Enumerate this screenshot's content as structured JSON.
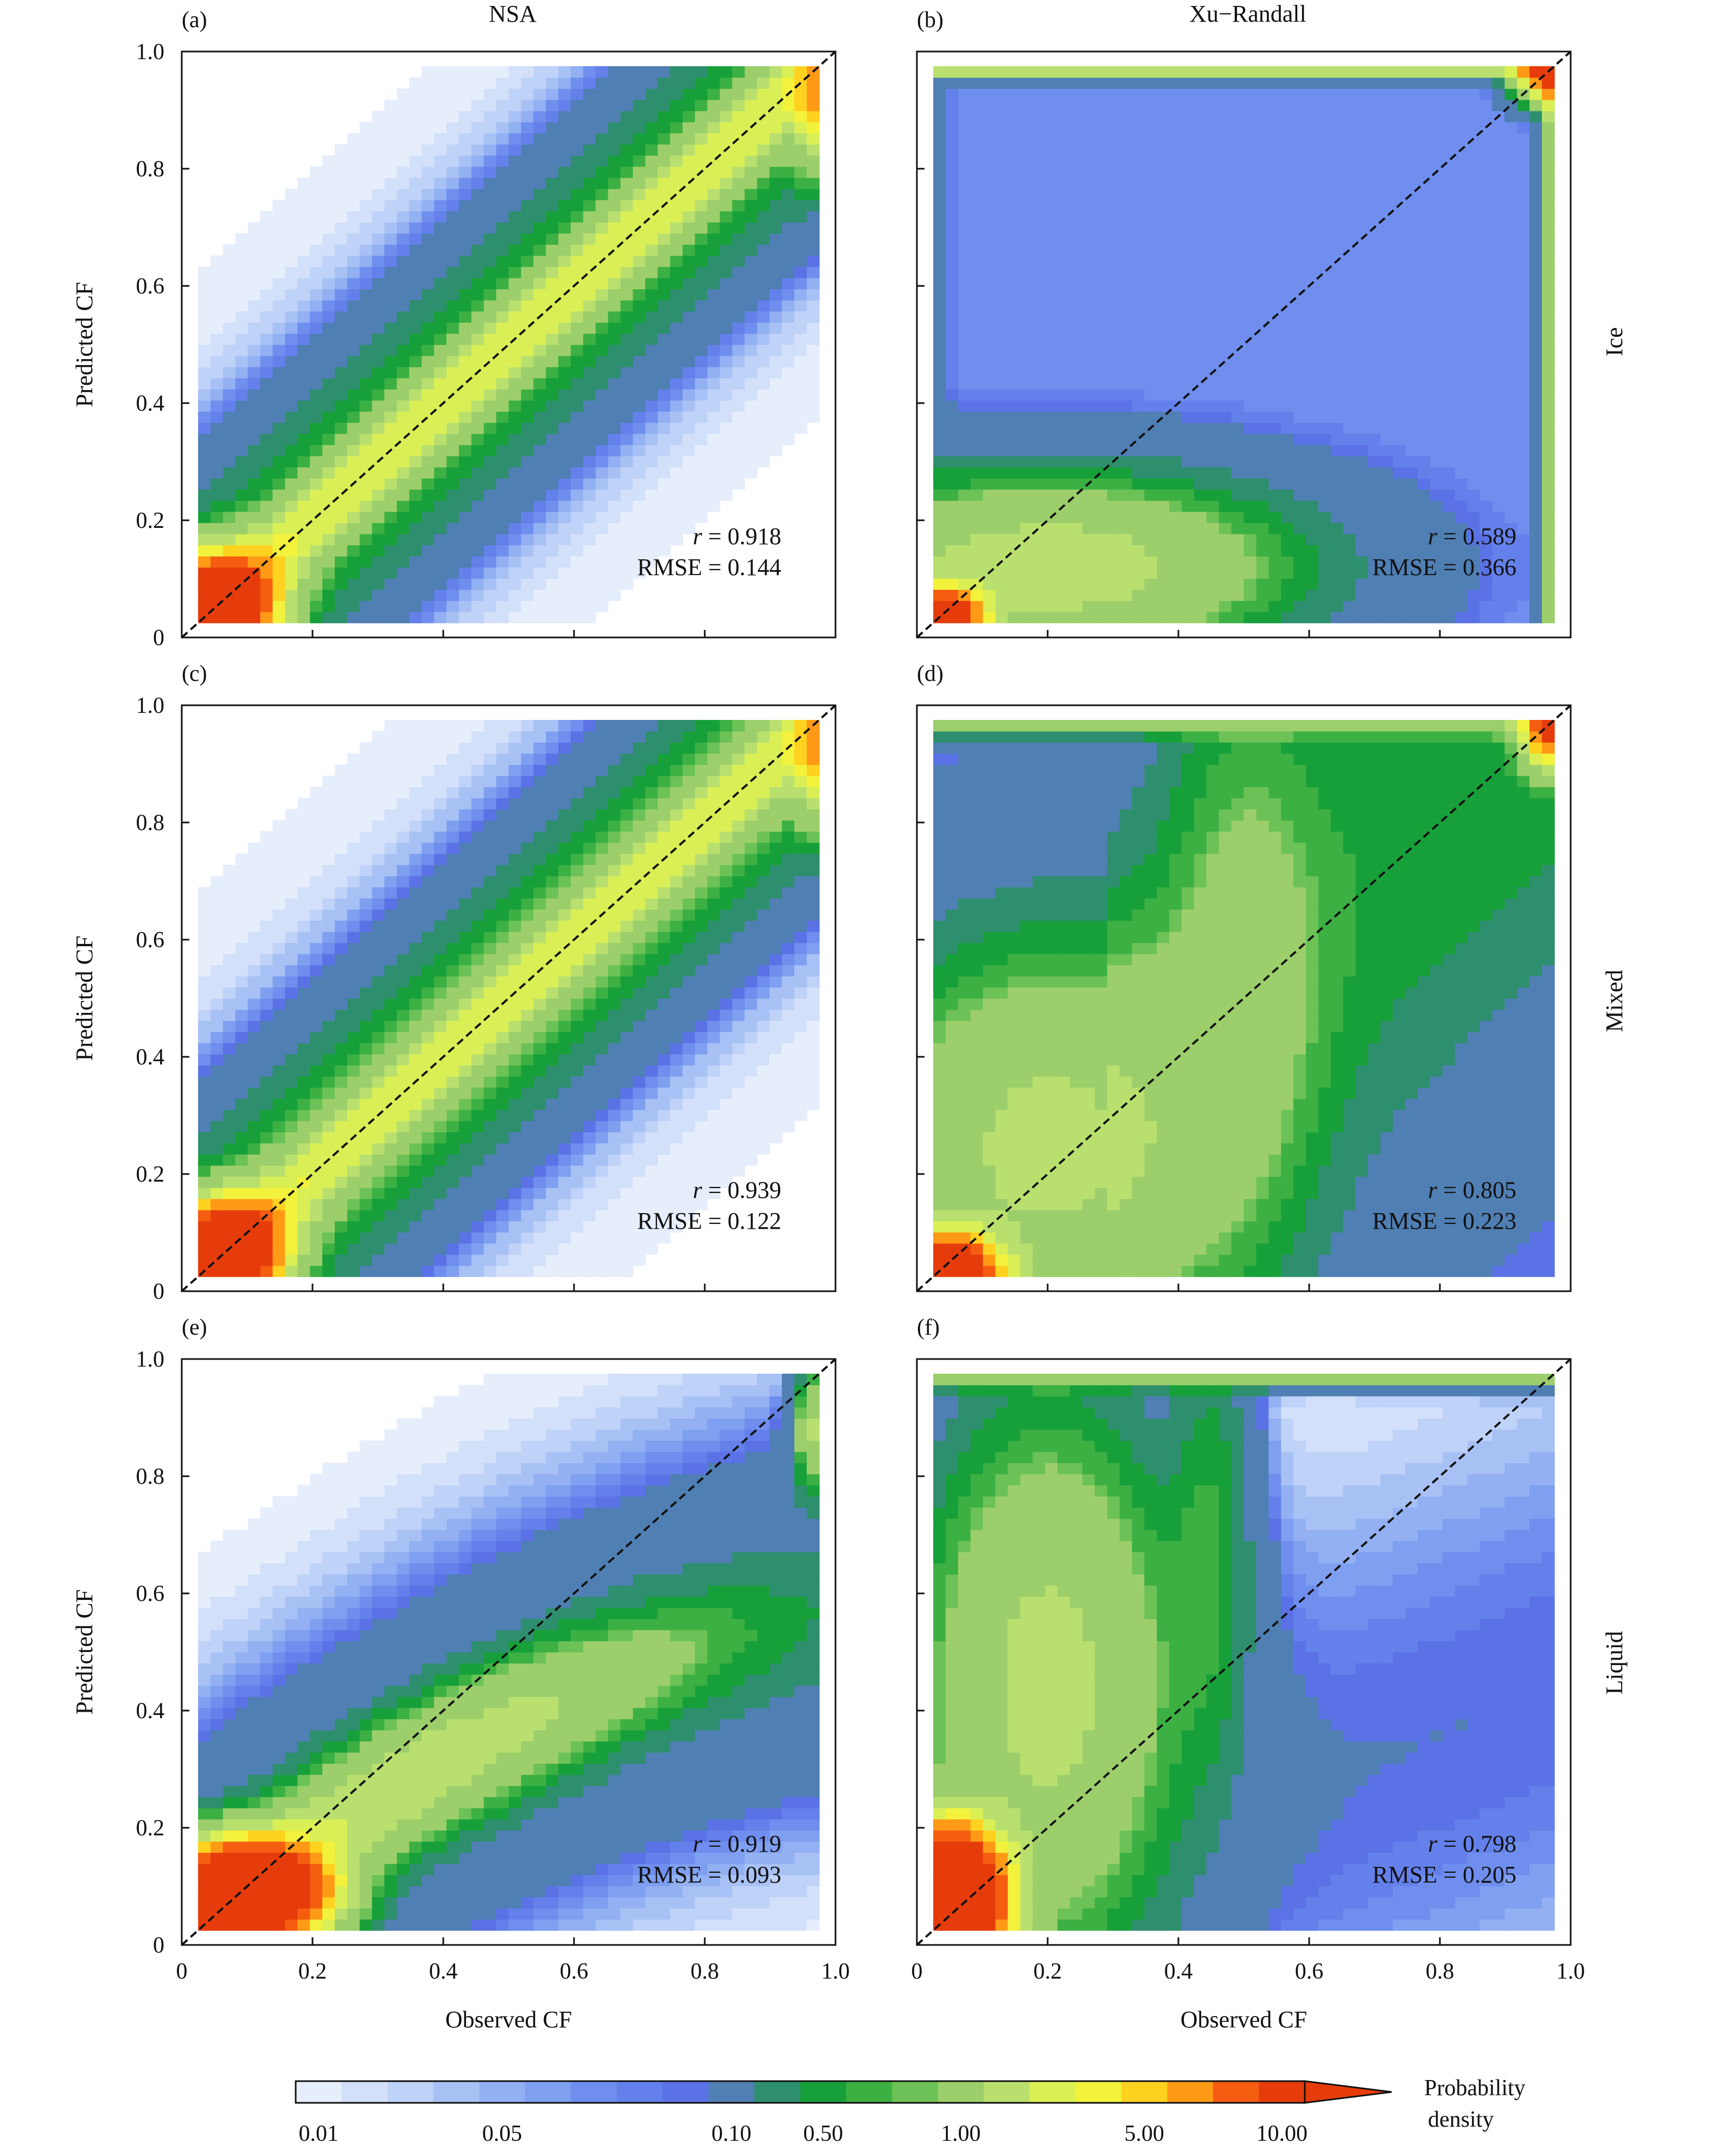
{
  "column_titles": [
    "NSA",
    "Xu−Randall"
  ],
  "row_labels": [
    "Ice",
    "Mixed",
    "Liquid"
  ],
  "colorbar": {
    "label_line1": "Probability",
    "label_line2": "density",
    "tick_labels": [
      "0.01",
      "0.05",
      "0.10",
      "0.50",
      "1.00",
      "5.00",
      "10.00"
    ],
    "levels": [
      0.01,
      0.02,
      0.03,
      0.04,
      0.05,
      0.06,
      0.07,
      0.08,
      0.09,
      0.1,
      0.3,
      0.5,
      0.7,
      0.9,
      1.0,
      2.0,
      3.0,
      4.0,
      5.0,
      6.0,
      8.0,
      10.0
    ],
    "colors": [
      "#e6eefc",
      "#d3e0fa",
      "#bfd2f8",
      "#a8c1f5",
      "#92b0f2",
      "#7f9ff0",
      "#6f8eee",
      "#6480ea",
      "#5b72e6",
      "#4f7fb3",
      "#2e8f6e",
      "#17a03a",
      "#3cb043",
      "#6cc257",
      "#9ccf6b",
      "#b9e06f",
      "#d9ef55",
      "#f2f23c",
      "#ffd21f",
      "#ff9a16",
      "#f55d10",
      "#e63c0c"
    ],
    "extend": "max"
  },
  "chart_data": [
    {
      "type": "heatmap",
      "panel": "(a)",
      "column": "NSA",
      "row": "Ice",
      "xlabel": "",
      "ylabel": "Predicted CF",
      "xlim": [
        0,
        1.0
      ],
      "ylim": [
        0,
        1.0
      ],
      "x_tick_labels": [],
      "y_tick_labels": [
        "0",
        "0.2",
        "0.4",
        "0.6",
        "0.8",
        "1.0"
      ],
      "stats_r": "= 0.918",
      "stats_rmse": "RMSE = 0.144",
      "ridge": "diagonal",
      "ridge_slope": 1.0,
      "ridge_width": 0.16,
      "peak_density": 10,
      "peak_at": [
        0.06,
        0.06
      ]
    },
    {
      "type": "heatmap",
      "panel": "(b)",
      "column": "Xu−Randall",
      "row": "Ice",
      "xlabel": "",
      "ylabel": "",
      "xlim": [
        0,
        1.0
      ],
      "ylim": [
        0,
        1.0
      ],
      "x_tick_labels": [],
      "y_tick_labels": [],
      "stats_r": "= 0.589",
      "stats_rmse": "RMSE = 0.366",
      "ridge": "low-blob",
      "peak_density": 10,
      "peak_at": [
        0.03,
        0.03
      ]
    },
    {
      "type": "heatmap",
      "panel": "(c)",
      "column": "NSA",
      "row": "Mixed",
      "xlabel": "",
      "ylabel": "Predicted CF",
      "xlim": [
        0,
        1.0
      ],
      "ylim": [
        0,
        1.0
      ],
      "x_tick_labels": [],
      "y_tick_labels": [
        "0",
        "0.2",
        "0.4",
        "0.6",
        "0.8",
        "1.0"
      ],
      "stats_r": "= 0.939",
      "stats_rmse": "RMSE = 0.122",
      "ridge": "diagonal",
      "ridge_slope": 1.0,
      "ridge_width": 0.15,
      "peak_density": 10,
      "peak_at": [
        0.07,
        0.07
      ]
    },
    {
      "type": "heatmap",
      "panel": "(d)",
      "column": "Xu−Randall",
      "row": "Mixed",
      "xlabel": "",
      "ylabel": "",
      "xlim": [
        0,
        1.0
      ],
      "ylim": [
        0,
        1.0
      ],
      "x_tick_labels": [],
      "y_tick_labels": [],
      "stats_r": "= 0.805",
      "stats_rmse": "RMSE = 0.223",
      "ridge": "broad",
      "peak_density": 10,
      "peak_at": [
        0.05,
        0.05
      ]
    },
    {
      "type": "heatmap",
      "panel": "(e)",
      "column": "NSA",
      "row": "Liquid",
      "xlabel": "Observed CF",
      "ylabel": "Predicted CF",
      "xlim": [
        0,
        1.0
      ],
      "ylim": [
        0,
        1.0
      ],
      "x_tick_labels": [
        "0",
        "0.2",
        "0.4",
        "0.6",
        "0.8",
        "1.0"
      ],
      "y_tick_labels": [
        "0",
        "0.2",
        "0.4",
        "0.6",
        "0.8",
        "1.0"
      ],
      "stats_r": "= 0.919",
      "stats_rmse": "RMSE = 0.093",
      "ridge": "concave",
      "peak_density": 10,
      "peak_at": [
        0.1,
        0.1
      ]
    },
    {
      "type": "heatmap",
      "panel": "(f)",
      "column": "Xu−Randall",
      "row": "Liquid",
      "xlabel": "Observed CF",
      "ylabel": "",
      "xlim": [
        0,
        1.0
      ],
      "ylim": [
        0,
        1.0
      ],
      "x_tick_labels": [
        "0",
        "0.2",
        "0.4",
        "0.6",
        "0.8",
        "1.0"
      ],
      "y_tick_labels": [],
      "stats_r": "= 0.798",
      "stats_rmse": "RMSE = 0.205",
      "ridge": "steep",
      "peak_density": 10,
      "peak_at": [
        0.05,
        0.08
      ]
    }
  ]
}
